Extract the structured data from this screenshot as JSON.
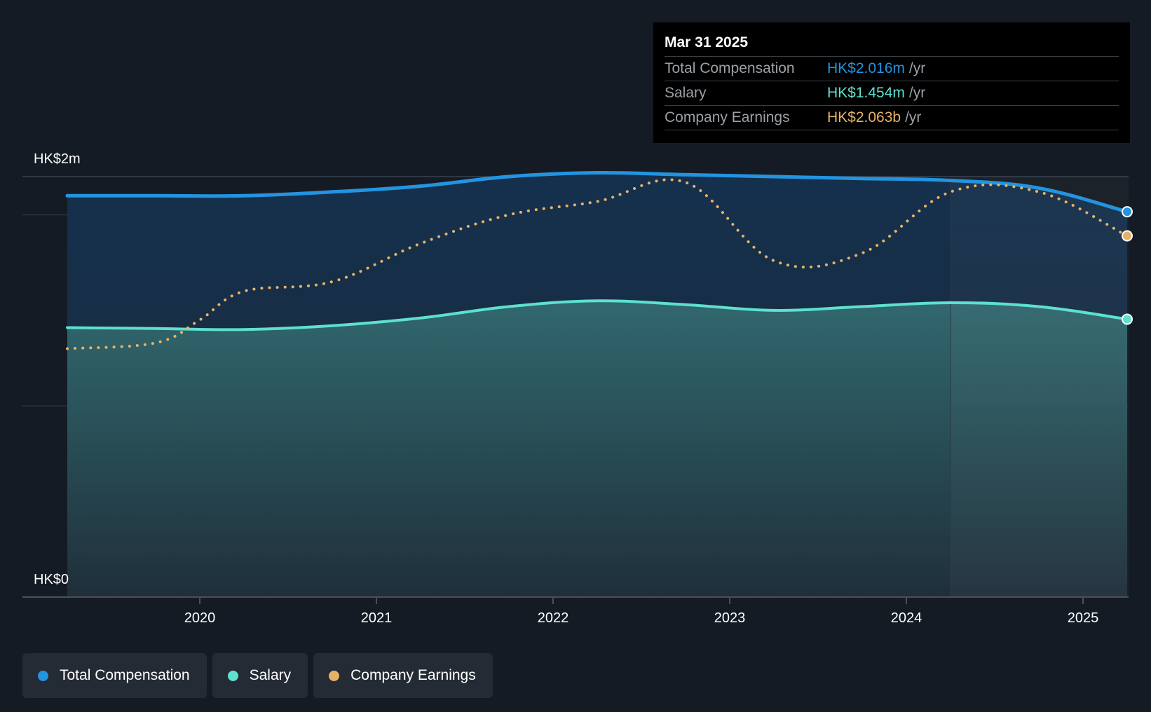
{
  "colors": {
    "background": "#151b24",
    "total_compensation": "#2394df",
    "salary": "#5ee0cf",
    "company_earnings": "#e8b266"
  },
  "tooltip": {
    "date": "Mar 31 2025",
    "rows": [
      {
        "name": "Total Compensation",
        "value": "HK$2.016m",
        "unit": "/yr"
      },
      {
        "name": "Salary",
        "value": "HK$1.454m",
        "unit": "/yr"
      },
      {
        "name": "Company Earnings",
        "value": "HK$2.063b",
        "unit": "/yr"
      }
    ]
  },
  "legend": [
    {
      "label": "Total Compensation",
      "icon": "dot"
    },
    {
      "label": "Salary",
      "icon": "dot"
    },
    {
      "label": "Company Earnings",
      "icon": "dot"
    }
  ],
  "chart_data": {
    "type": "area",
    "y_tick_labels": [
      "HK$2m",
      "HK$0"
    ],
    "ylim": [
      0,
      2.2
    ],
    "xlim": [
      2019.25,
      2025.25
    ],
    "x_ticks": [
      2020,
      2021,
      2022,
      2023,
      2024,
      2025
    ],
    "x_tick_labels": [
      "2020",
      "2021",
      "2022",
      "2023",
      "2024",
      "2025"
    ],
    "grid": true,
    "legend_position": "bottom-left",
    "highlight_from": 2024.25,
    "series": [
      {
        "name": "Total Compensation",
        "units": "HK$m",
        "x": [
          2019.25,
          2019.75,
          2020.25,
          2020.75,
          2021.25,
          2021.75,
          2022.25,
          2022.75,
          2023.25,
          2023.75,
          2024.25,
          2024.75,
          2025.25
        ],
        "y": [
          2.1,
          2.1,
          2.1,
          2.12,
          2.15,
          2.2,
          2.22,
          2.21,
          2.2,
          2.19,
          2.18,
          2.14,
          2.016
        ]
      },
      {
        "name": "Salary",
        "units": "HK$m",
        "x": [
          2019.25,
          2019.75,
          2020.25,
          2020.75,
          2021.25,
          2021.75,
          2022.25,
          2022.75,
          2023.25,
          2023.75,
          2024.25,
          2024.75,
          2025.25
        ],
        "y": [
          1.41,
          1.405,
          1.4,
          1.42,
          1.46,
          1.52,
          1.55,
          1.53,
          1.5,
          1.52,
          1.54,
          1.52,
          1.454
        ]
      },
      {
        "name": "Company Earnings",
        "units": "HK$b, scaled to the salary axis",
        "x": [
          2019.25,
          2019.75,
          2020.0,
          2020.25,
          2020.75,
          2021.25,
          2021.75,
          2022.25,
          2022.75,
          2023.25,
          2023.75,
          2024.25,
          2024.75,
          2025.25
        ],
        "y": [
          1.3,
          1.33,
          1.45,
          1.6,
          1.65,
          1.85,
          2.0,
          2.07,
          2.17,
          1.76,
          1.8,
          2.12,
          2.12,
          1.89
        ]
      }
    ]
  }
}
